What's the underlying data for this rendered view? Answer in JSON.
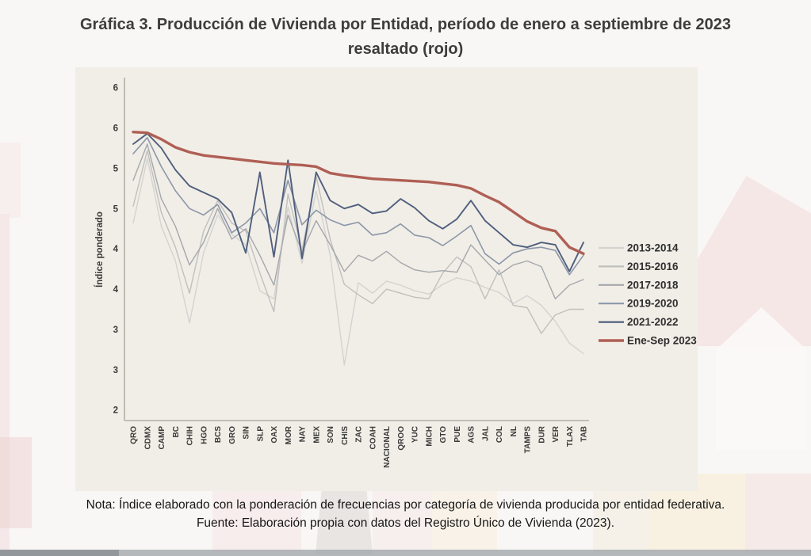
{
  "page": {
    "title_line1": "Gráfica 3. Producción de Vivienda por Entidad, período de enero a septiembre de 2023",
    "title_line2": "resaltado (rojo)",
    "note_line1": "Nota: Índice elaborado con la ponderación de frecuencias por categoría de vivienda producida por entidad federativa.",
    "note_line2": "Fuente: Elaboración propia con datos del Registro Único de Vivienda (2023)."
  },
  "chart_data": {
    "type": "line",
    "title": "Producción de Vivienda por Entidad",
    "ylabel": "Índice ponderado",
    "xlabel": "",
    "grid": false,
    "legend_position": "right",
    "ylim": [
      1.85,
      6.15
    ],
    "ytick_values": [
      6,
      5.5,
      5,
      4.5,
      4,
      3.5,
      3,
      2.5,
      2
    ],
    "ytick_labels": [
      "6",
      "6",
      "5",
      "5",
      "4",
      "4",
      "3",
      "3",
      "2"
    ],
    "axis_color": "#b3afa8",
    "text_color": "#3a3a3a",
    "categories": [
      "QRO",
      "CDMX",
      "CAMP",
      "BC",
      "CHIH",
      "HGO",
      "BCS",
      "GRO",
      "SIN",
      "SLP",
      "OAX",
      "MOR",
      "NAY",
      "MEX",
      "SON",
      "CHIS",
      "ZAC",
      "COAH",
      "NACIONAL",
      "QROO",
      "YUC",
      "MICH",
      "GTO",
      "PUE",
      "AGS",
      "JAL",
      "COL",
      "NL",
      "TAMPS",
      "DUR",
      "VER",
      "TLAX",
      "TAB"
    ],
    "series": [
      {
        "name": "2013-2014",
        "color": "#d3d3d1",
        "width": 1.4,
        "values": [
          4.32,
          5.12,
          4.28,
          3.85,
          3.08,
          3.95,
          4.42,
          4.18,
          4.05,
          3.48,
          3.38,
          4.52,
          3.82,
          4.72,
          3.92,
          2.56,
          3.58,
          3.45,
          3.6,
          3.55,
          3.48,
          3.44,
          3.56,
          3.64,
          3.6,
          3.52,
          3.46,
          3.32,
          3.42,
          3.3,
          3.1,
          2.83,
          2.7
        ]
      },
      {
        "name": "2015-2016",
        "color": "#c0c0be",
        "width": 1.4,
        "values": [
          4.53,
          5.22,
          4.45,
          4.02,
          3.45,
          4.22,
          4.6,
          4.32,
          4.22,
          3.7,
          3.22,
          4.68,
          3.98,
          4.9,
          4.12,
          3.56,
          3.43,
          3.32,
          3.5,
          3.45,
          3.4,
          3.38,
          3.7,
          3.9,
          3.78,
          3.38,
          3.74,
          3.3,
          3.27,
          2.95,
          3.18,
          3.25,
          3.25
        ]
      },
      {
        "name": "2017-2018",
        "color": "#a4a8ac",
        "width": 1.4,
        "values": [
          4.85,
          5.3,
          4.62,
          4.28,
          3.8,
          4.08,
          4.5,
          4.12,
          4.25,
          3.92,
          3.55,
          4.42,
          3.96,
          4.35,
          4.05,
          3.72,
          3.92,
          3.85,
          3.97,
          3.83,
          3.74,
          3.71,
          3.73,
          3.71,
          4.05,
          3.86,
          3.68,
          3.8,
          3.85,
          3.78,
          3.38,
          3.55,
          3.62
        ]
      },
      {
        "name": "2019-2020",
        "color": "#8b97a8",
        "width": 1.6,
        "values": [
          5.18,
          5.38,
          5.02,
          4.72,
          4.5,
          4.42,
          4.55,
          4.2,
          4.32,
          4.5,
          4.2,
          4.85,
          4.3,
          4.48,
          4.36,
          4.29,
          4.33,
          4.17,
          4.2,
          4.31,
          4.17,
          4.14,
          4.04,
          4.16,
          4.29,
          3.94,
          3.81,
          3.95,
          4.0,
          4.02,
          3.98,
          3.68,
          3.92
        ]
      },
      {
        "name": "2021-2022",
        "color": "#4f5f7d",
        "width": 1.9,
        "values": [
          5.3,
          5.43,
          5.25,
          4.98,
          4.78,
          4.7,
          4.62,
          4.45,
          3.95,
          4.95,
          3.9,
          5.1,
          3.88,
          4.95,
          4.6,
          4.5,
          4.55,
          4.44,
          4.47,
          4.62,
          4.51,
          4.35,
          4.25,
          4.37,
          4.6,
          4.35,
          4.2,
          4.05,
          4.02,
          4.08,
          4.05,
          3.72,
          4.08
        ]
      },
      {
        "name": "Ene-Sep 2023",
        "color": "#b05f55",
        "width": 3.4,
        "values": [
          5.45,
          5.44,
          5.36,
          5.26,
          5.2,
          5.16,
          5.14,
          5.12,
          5.1,
          5.08,
          5.06,
          5.05,
          5.04,
          5.02,
          4.94,
          4.91,
          4.89,
          4.87,
          4.86,
          4.85,
          4.84,
          4.83,
          4.81,
          4.79,
          4.75,
          4.66,
          4.58,
          4.46,
          4.34,
          4.26,
          4.22,
          4.02,
          3.94
        ]
      }
    ]
  },
  "decor": {
    "note": "faint watermark of house/building silhouettes",
    "pink": "#f2dcdc",
    "cream": "#f6ecd4",
    "gray": "#dcd9d6",
    "bottom_bar": "#a2a8ac"
  }
}
